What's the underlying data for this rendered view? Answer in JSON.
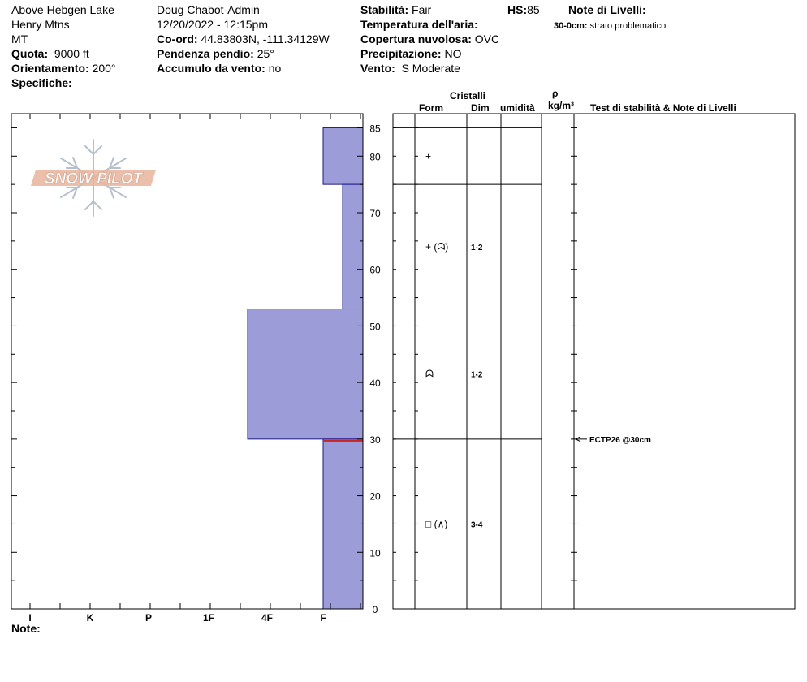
{
  "header": {
    "location": "Above Hebgen Lake",
    "range": "Henry Mtns",
    "state": "MT",
    "quota_label": "Quota:",
    "quota_value": "9000 ft",
    "orient_label": "Orientamento:",
    "orient_value": "200°",
    "spec_label": "Specifiche:",
    "observer": "Doug Chabot-Admin",
    "datetime": "12/20/2022 - 12:15pm",
    "coord_label": "Co-ord:",
    "coord_value": "44.83803N, -111.34129W",
    "slope_label": "Pendenza pendio:",
    "slope_value": "25°",
    "wind_load_label": "Accumulo da vento:",
    "wind_load_value": "no",
    "stability_label": "Stabilità:",
    "stability_value": "Fair",
    "air_temp_label": "Temperatura dell'aria:",
    "cloud_label": "Copertura nuvolosa:",
    "cloud_value": "OVC",
    "precip_label": "Precipitazione:",
    "precip_value": "NO",
    "wind_label": "Vento:",
    "wind_value": "S Moderate",
    "hs_label": "HS:",
    "hs_value": "85",
    "layer_notes_title": "Note di Livelli:",
    "layer_note_depth": "30-0cm:",
    "layer_note_text": "strato problematico",
    "note_label": "Note:"
  },
  "logo_text": "SNOW PILOT",
  "columns": {
    "cristalli": "Cristalli",
    "form": "Form",
    "dim": "Dim",
    "umidita": "umidità",
    "rho": "ρ",
    "density_unit": "kg/m³",
    "tests": "Test di stabilità & Note di Livelli"
  },
  "colors": {
    "hardness_fill": "#9c9cd8",
    "hardness_stroke": "#1a1a8c",
    "weak_layer": "#cc2222",
    "logo_fill": "#e8b49a",
    "logo_flake": "#b4c0cc"
  },
  "chart_data": {
    "type": "bar",
    "y_label_side": "right",
    "ylim": [
      0,
      85
    ],
    "y_ticks": [
      0,
      10,
      20,
      30,
      40,
      50,
      60,
      70,
      80,
      85
    ],
    "x_tick_labels": [
      "I",
      "K",
      "P",
      "1F",
      "4F",
      "F"
    ],
    "layers": [
      {
        "top": 85,
        "bottom": 75,
        "hardness": "F",
        "form": "+",
        "size": ""
      },
      {
        "top": 75,
        "bottom": 53,
        "hardness": "F+",
        "form": "+ (ᗣ)",
        "size": "1-2"
      },
      {
        "top": 53,
        "bottom": 30,
        "hardness": "4F-",
        "form": "ᗣ",
        "size": "1-2"
      },
      {
        "top": 30,
        "bottom": 0,
        "hardness": "F",
        "form": "□ (∧)",
        "size": "3-4"
      }
    ],
    "weak_layer_depth": 30,
    "stability_tests": [
      {
        "depth": 30,
        "label": "ECTP26 @30cm"
      }
    ]
  }
}
